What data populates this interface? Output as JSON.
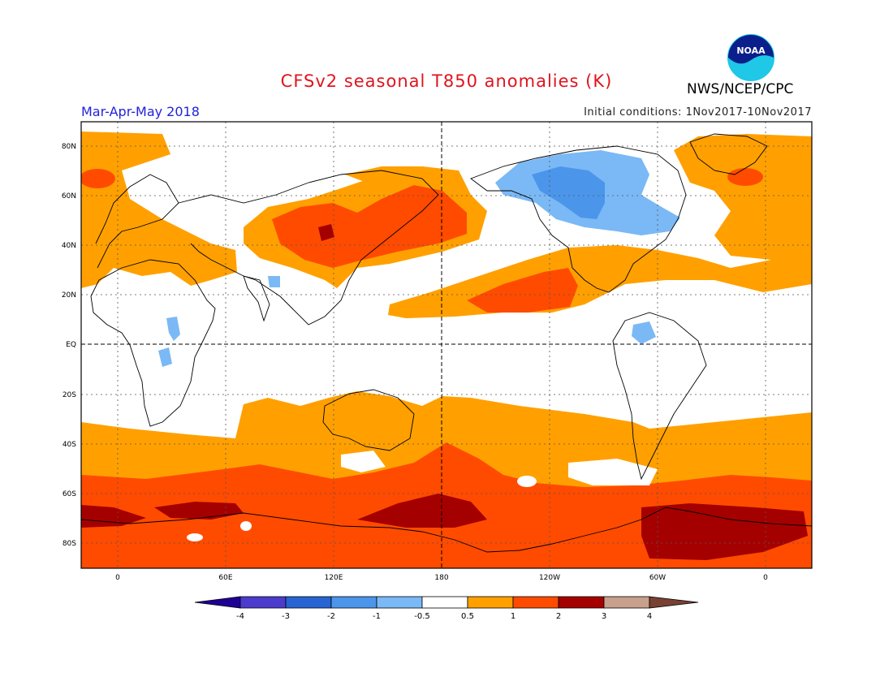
{
  "header": {
    "title": "CFSv2 seasonal T850 anomalies (K)",
    "organization": "NWS/NCEP/CPC",
    "season": "Mar-Apr-May 2018",
    "initial_conditions": "Initial conditions: 1Nov2017-10Nov2017",
    "logo_text": "NOAA"
  },
  "axes": {
    "lat_labels": [
      "80N",
      "60N",
      "40N",
      "20N",
      "EQ",
      "20S",
      "40S",
      "60S",
      "80S"
    ],
    "lon_labels": [
      "0",
      "60E",
      "120E",
      "180",
      "120W",
      "60W",
      "0"
    ]
  },
  "colorbar": {
    "labels": [
      "-4",
      "-3",
      "-2",
      "-1",
      "-0.5",
      "0.5",
      "1",
      "2",
      "3",
      "4"
    ],
    "colors": {
      "below_min": "#1e0096",
      "n4_n3": "#4b3ccd",
      "n3_n2": "#2864d2",
      "n2_n1": "#4b96eb",
      "n1_n05": "#7ab9f5",
      "neutral": "#ffffff",
      "p05_p1": "#ffa000",
      "p1_p2": "#ff4b00",
      "p2_p3": "#a50000",
      "p3_p4": "#c8a08c",
      "above_max": "#784132"
    }
  }
}
